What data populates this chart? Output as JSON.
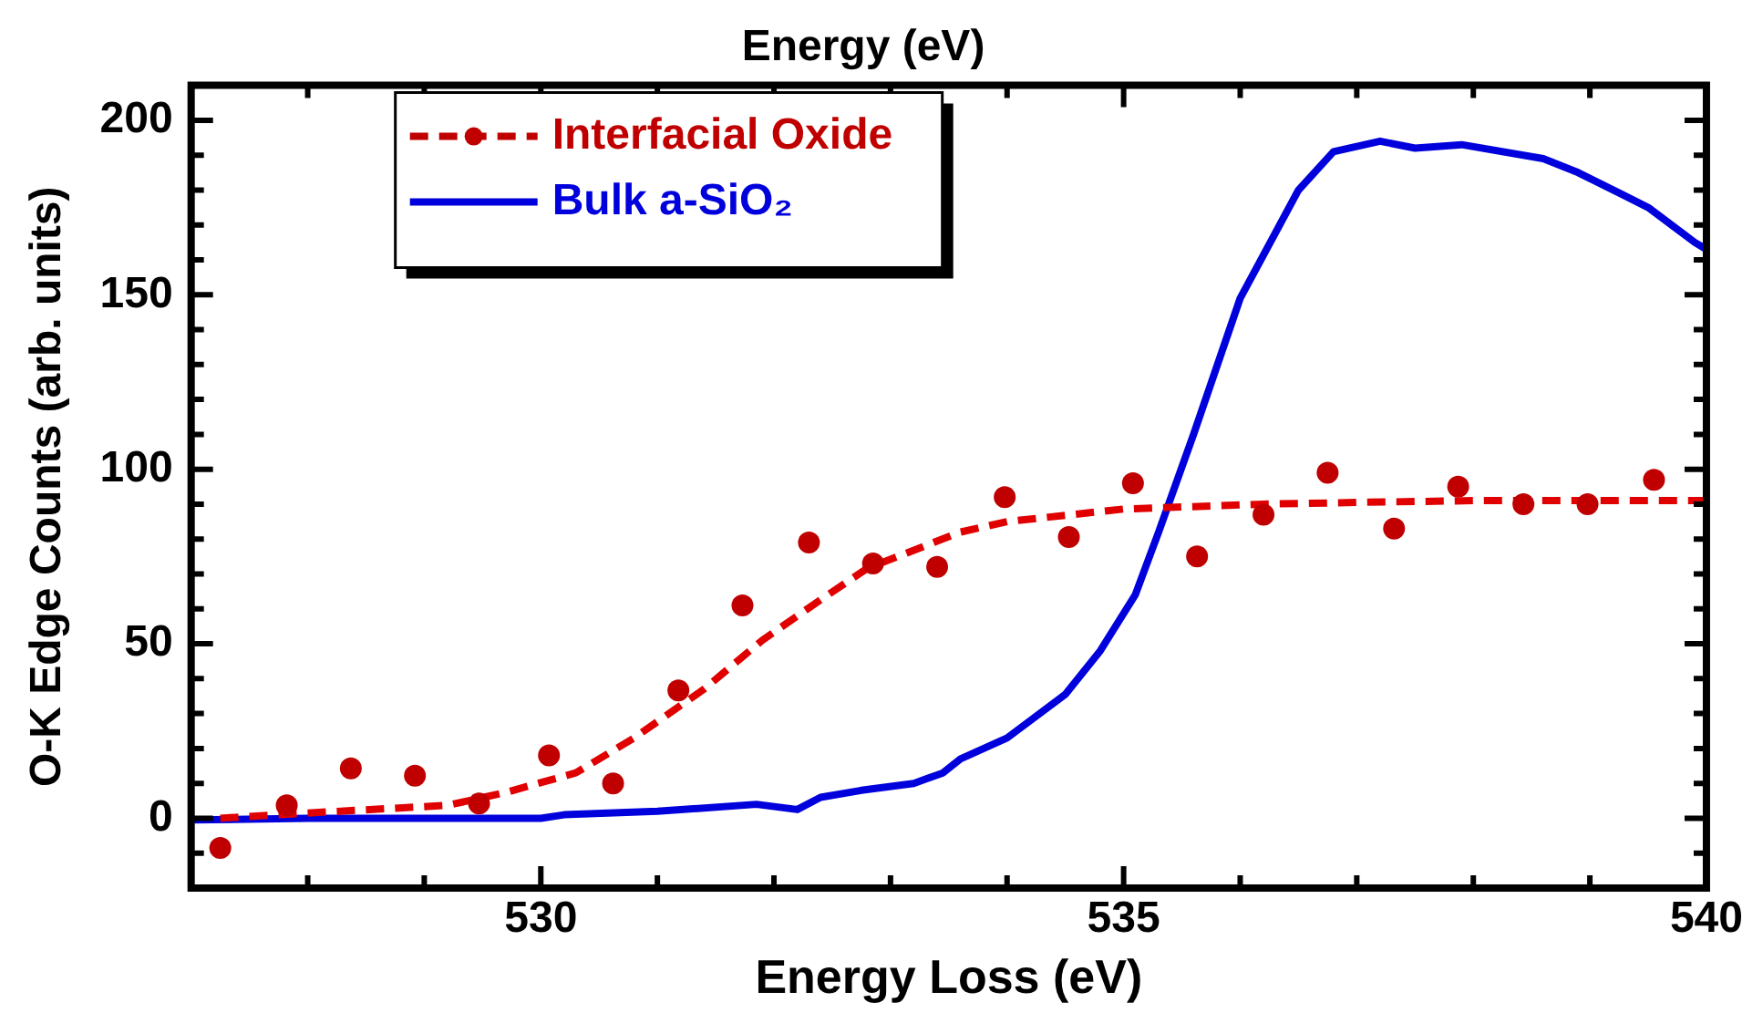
{
  "chart_data": {
    "type": "line",
    "title": "Energy (eV)",
    "xlabel": "Energy Loss (eV)",
    "ylabel": "O-K Edge Counts (arb. units)",
    "xlim": [
      527,
      540
    ],
    "xticks": [
      {
        "value": 527,
        "label": null
      },
      {
        "value": 528,
        "label": null
      },
      {
        "value": 529,
        "label": null
      },
      530,
      {
        "value": 531,
        "label": null
      },
      {
        "value": 532,
        "label": null
      },
      {
        "value": 533,
        "label": null
      },
      {
        "value": 534,
        "label": null
      },
      535,
      {
        "value": 536,
        "label": null
      },
      {
        "value": 537,
        "label": null
      },
      {
        "value": 538,
        "label": null
      },
      {
        "value": 539,
        "label": null
      },
      540
    ],
    "ylim": [
      -20,
      210
    ],
    "yticks": [
      {
        "value": -10,
        "label": null
      },
      0,
      {
        "value": 10,
        "label": null
      },
      {
        "value": 20,
        "label": null
      },
      {
        "value": 30,
        "label": null
      },
      {
        "value": 40,
        "label": null
      },
      50,
      {
        "value": 60,
        "label": null
      },
      {
        "value": 70,
        "label": null
      },
      {
        "value": 80,
        "label": null
      },
      {
        "value": 90,
        "label": null
      },
      100,
      {
        "value": 110,
        "label": null
      },
      {
        "value": 120,
        "label": null
      },
      {
        "value": 130,
        "label": null
      },
      {
        "value": 140,
        "label": null
      },
      150,
      {
        "value": 160,
        "label": null
      },
      {
        "value": 170,
        "label": null
      },
      {
        "value": 180,
        "label": null
      },
      {
        "value": 190,
        "label": null
      },
      200
    ],
    "grid": false,
    "legend": "top left",
    "series": [
      {
        "name": "Interfacial Oxide",
        "type": "scatter",
        "marker": "circle",
        "color": "#c00000",
        "x": [
          527.25,
          527.82,
          528.37,
          528.92,
          529.47,
          530.07,
          530.62,
          531.18,
          531.73,
          532.3,
          532.85,
          533.4,
          533.98,
          534.53,
          535.08,
          535.63,
          536.2,
          536.75,
          537.32,
          537.87,
          538.43,
          538.98,
          539.55
        ],
        "values": [
          -8.5,
          3.7,
          14.3,
          12.2,
          4.2,
          18,
          10,
          36.6,
          61,
          79,
          73,
          72,
          92,
          80.6,
          96,
          75,
          87,
          99,
          83,
          95,
          90,
          90,
          97
        ]
      },
      {
        "type": "line",
        "line_style": "dashed",
        "marker": "none",
        "color": "#e00000",
        "x": [
          527.25,
          528,
          529.2,
          529.7,
          530.3,
          530.8,
          531.4,
          531.9,
          532.4,
          532.8,
          533.6,
          534,
          535,
          536.2,
          537,
          538,
          539,
          540
        ],
        "values": [
          0,
          1.5,
          3.7,
          7.4,
          13,
          23,
          37,
          51,
          62.6,
          71.6,
          82,
          85,
          88.6,
          90,
          90.5,
          91,
          91,
          91
        ]
      },
      {
        "name": "Bulk a-SiO₂",
        "type": "line",
        "line_style": "solid",
        "marker": "none",
        "color": "#0000dd",
        "x": [
          527,
          528,
          529,
          530,
          530.2,
          531,
          531.85,
          532.2,
          532.4,
          532.75,
          533.2,
          533.45,
          533.6,
          534,
          534.5,
          534.8,
          535.1,
          535.3,
          535.6,
          536,
          536.5,
          536.8,
          537.2,
          537.5,
          537.9,
          538.6,
          538.9,
          539.5,
          539.9,
          540
        ],
        "values": [
          -0.5,
          0,
          0,
          0,
          1,
          2,
          4,
          2.5,
          6,
          8,
          10,
          13,
          17,
          23,
          35.5,
          48,
          64,
          82,
          110,
          149,
          180,
          191,
          194,
          192,
          193,
          189,
          185,
          175,
          165,
          163
        ]
      }
    ]
  }
}
